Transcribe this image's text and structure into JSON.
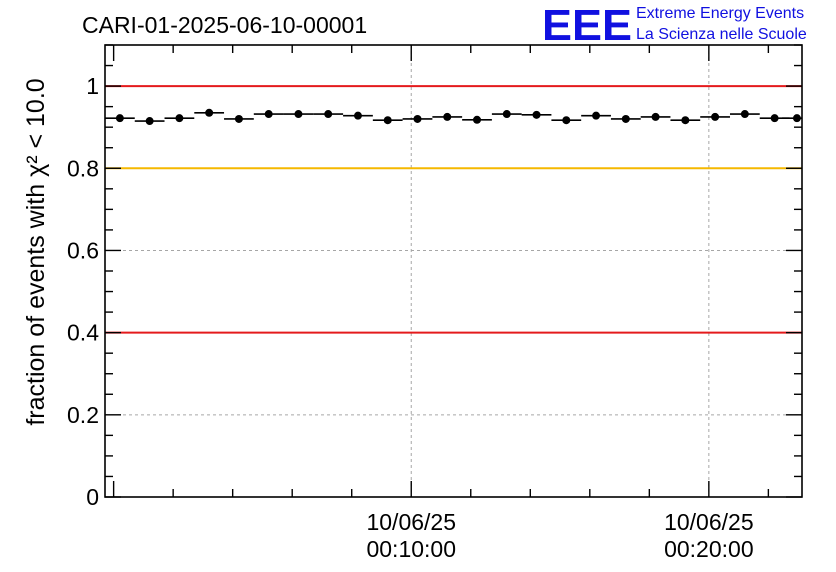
{
  "header": {
    "title": "CARI-01-2025-06-10-00001",
    "logo": {
      "mark": "EEE",
      "line1": "Extreme Energy Events",
      "line2": "La Scienza nelle Scuole"
    }
  },
  "chart_data": {
    "type": "scatter",
    "title": "CARI-01-2025-06-10-00001",
    "ylabel": "fraction of events with χ² < 10.0",
    "xlabel": "",
    "ylim": [
      0,
      1.1
    ],
    "xlim_minutes": [
      -0.29,
      23.13
    ],
    "x_tick_labels": [
      {
        "line1": "10/06/25",
        "line2": "00:10:00",
        "minutes": 10
      },
      {
        "line1": "10/06/25",
        "line2": "00:20:00",
        "minutes": 20
      }
    ],
    "y_tick_labels": [
      "0",
      "0.2",
      "0.4",
      "0.6",
      "0.8",
      "1"
    ],
    "y_ticks": [
      0,
      0.2,
      0.4,
      0.6,
      0.8,
      1
    ],
    "grid": true,
    "reference_lines": [
      {
        "y": 1.0,
        "color": "#e41a1c"
      },
      {
        "y": 0.8,
        "color": "#f5b800"
      },
      {
        "y": 0.4,
        "color": "#e41a1c"
      }
    ],
    "bin_width_minutes": 1,
    "series": [
      {
        "color": "#000000",
        "x_minutes": [
          0.21,
          1.21,
          2.21,
          3.21,
          4.21,
          5.21,
          6.21,
          7.21,
          8.21,
          9.21,
          10.21,
          11.21,
          12.21,
          13.21,
          14.21,
          15.21,
          16.21,
          17.21,
          18.21,
          19.21,
          20.21,
          21.21,
          22.21,
          22.96
        ],
        "values": [
          0.922,
          0.915,
          0.922,
          0.935,
          0.92,
          0.932,
          0.932,
          0.932,
          0.928,
          0.917,
          0.92,
          0.925,
          0.918,
          0.932,
          0.93,
          0.917,
          0.928,
          0.92,
          0.925,
          0.917,
          0.925,
          0.932,
          0.922,
          0.922
        ]
      }
    ]
  }
}
